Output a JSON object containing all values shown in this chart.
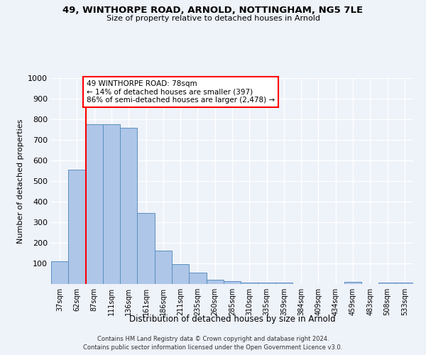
{
  "title_line1": "49, WINTHORPE ROAD, ARNOLD, NOTTINGHAM, NG5 7LE",
  "title_line2": "Size of property relative to detached houses in Arnold",
  "xlabel": "Distribution of detached houses by size in Arnold",
  "ylabel": "Number of detached properties",
  "categories": [
    "37sqm",
    "62sqm",
    "87sqm",
    "111sqm",
    "136sqm",
    "161sqm",
    "186sqm",
    "211sqm",
    "235sqm",
    "260sqm",
    "285sqm",
    "310sqm",
    "335sqm",
    "359sqm",
    "384sqm",
    "409sqm",
    "434sqm",
    "459sqm",
    "483sqm",
    "508sqm",
    "533sqm"
  ],
  "values": [
    110,
    555,
    775,
    775,
    760,
    345,
    163,
    97,
    55,
    20,
    13,
    8,
    8,
    8,
    0,
    0,
    0,
    10,
    0,
    8,
    8
  ],
  "bar_color": "#aec6e8",
  "bar_edge_color": "#5a8fc0",
  "vline_x": 1.5,
  "vline_color": "red",
  "annotation_text": "49 WINTHORPE ROAD: 78sqm\n← 14% of detached houses are smaller (397)\n86% of semi-detached houses are larger (2,478) →",
  "annotation_box_color": "white",
  "annotation_box_edge_color": "red",
  "ylim": [
    0,
    1000
  ],
  "yticks": [
    0,
    100,
    200,
    300,
    400,
    500,
    600,
    700,
    800,
    900,
    1000
  ],
  "background_color": "#eef2f9",
  "grid_color": "white",
  "footer_line1": "Contains HM Land Registry data © Crown copyright and database right 2024.",
  "footer_line2": "Contains public sector information licensed under the Open Government Licence v3.0."
}
